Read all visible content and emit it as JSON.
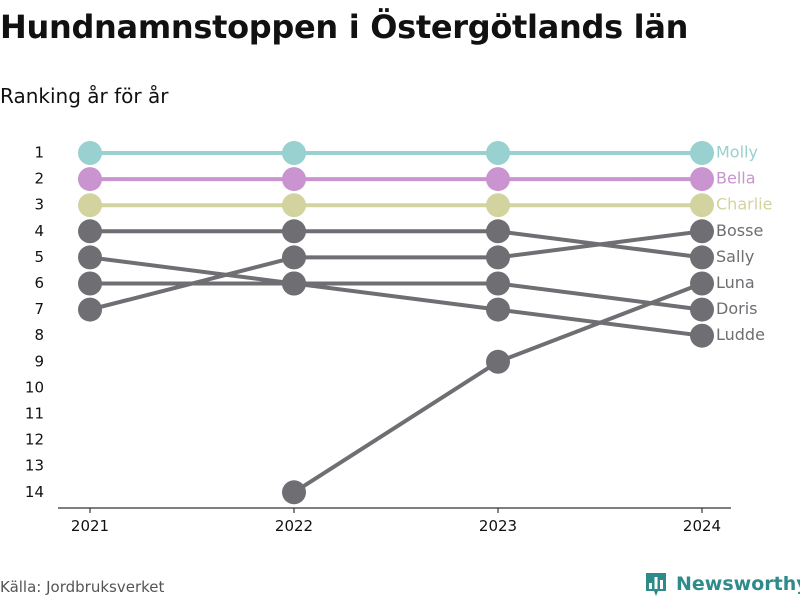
{
  "title": "Hundnamnstoppen i Östergötlands län",
  "subtitle": "Ranking år för år",
  "source": "Källa: Jordbruksverket",
  "brand": "Newsworthy",
  "brand_icon": "bar-chart-logo-icon",
  "colors": {
    "teal": "#99d0d0",
    "purple": "#c994cf",
    "olive": "#d3d39f",
    "grey": "#6e6e73",
    "brand": "#2e8b8a"
  },
  "chart_data": {
    "type": "line",
    "title": "Hundnamnstoppen i Östergötlands län",
    "subtitle": "Ranking år för år",
    "xlabel": "",
    "ylabel": "",
    "x": [
      "2021",
      "2022",
      "2023",
      "2024"
    ],
    "yticks": [
      1,
      2,
      3,
      4,
      5,
      6,
      7,
      8,
      9,
      10,
      11,
      12,
      13,
      14
    ],
    "ylim": [
      1,
      14
    ],
    "y_reversed": true,
    "grid": false,
    "legend": "labels at right end of lines",
    "series": [
      {
        "name": "Molly",
        "values": [
          1,
          1,
          1,
          1
        ],
        "color": "#99d0d0"
      },
      {
        "name": "Bella",
        "values": [
          2,
          2,
          2,
          2
        ],
        "color": "#c994cf"
      },
      {
        "name": "Charlie",
        "values": [
          3,
          3,
          3,
          3
        ],
        "color": "#d3d39f"
      },
      {
        "name": "Bosse",
        "values": [
          7,
          5,
          5,
          4
        ],
        "color": "#6e6e73"
      },
      {
        "name": "Sally",
        "values": [
          4,
          4,
          4,
          5
        ],
        "color": "#6e6e73"
      },
      {
        "name": "Luna",
        "values": [
          null,
          14,
          9,
          6
        ],
        "color": "#6e6e73"
      },
      {
        "name": "Doris",
        "values": [
          6,
          6,
          6,
          7
        ],
        "color": "#6e6e73"
      },
      {
        "name": "Ludde",
        "values": [
          5,
          6,
          7,
          8
        ],
        "color": "#6e6e73"
      }
    ]
  }
}
